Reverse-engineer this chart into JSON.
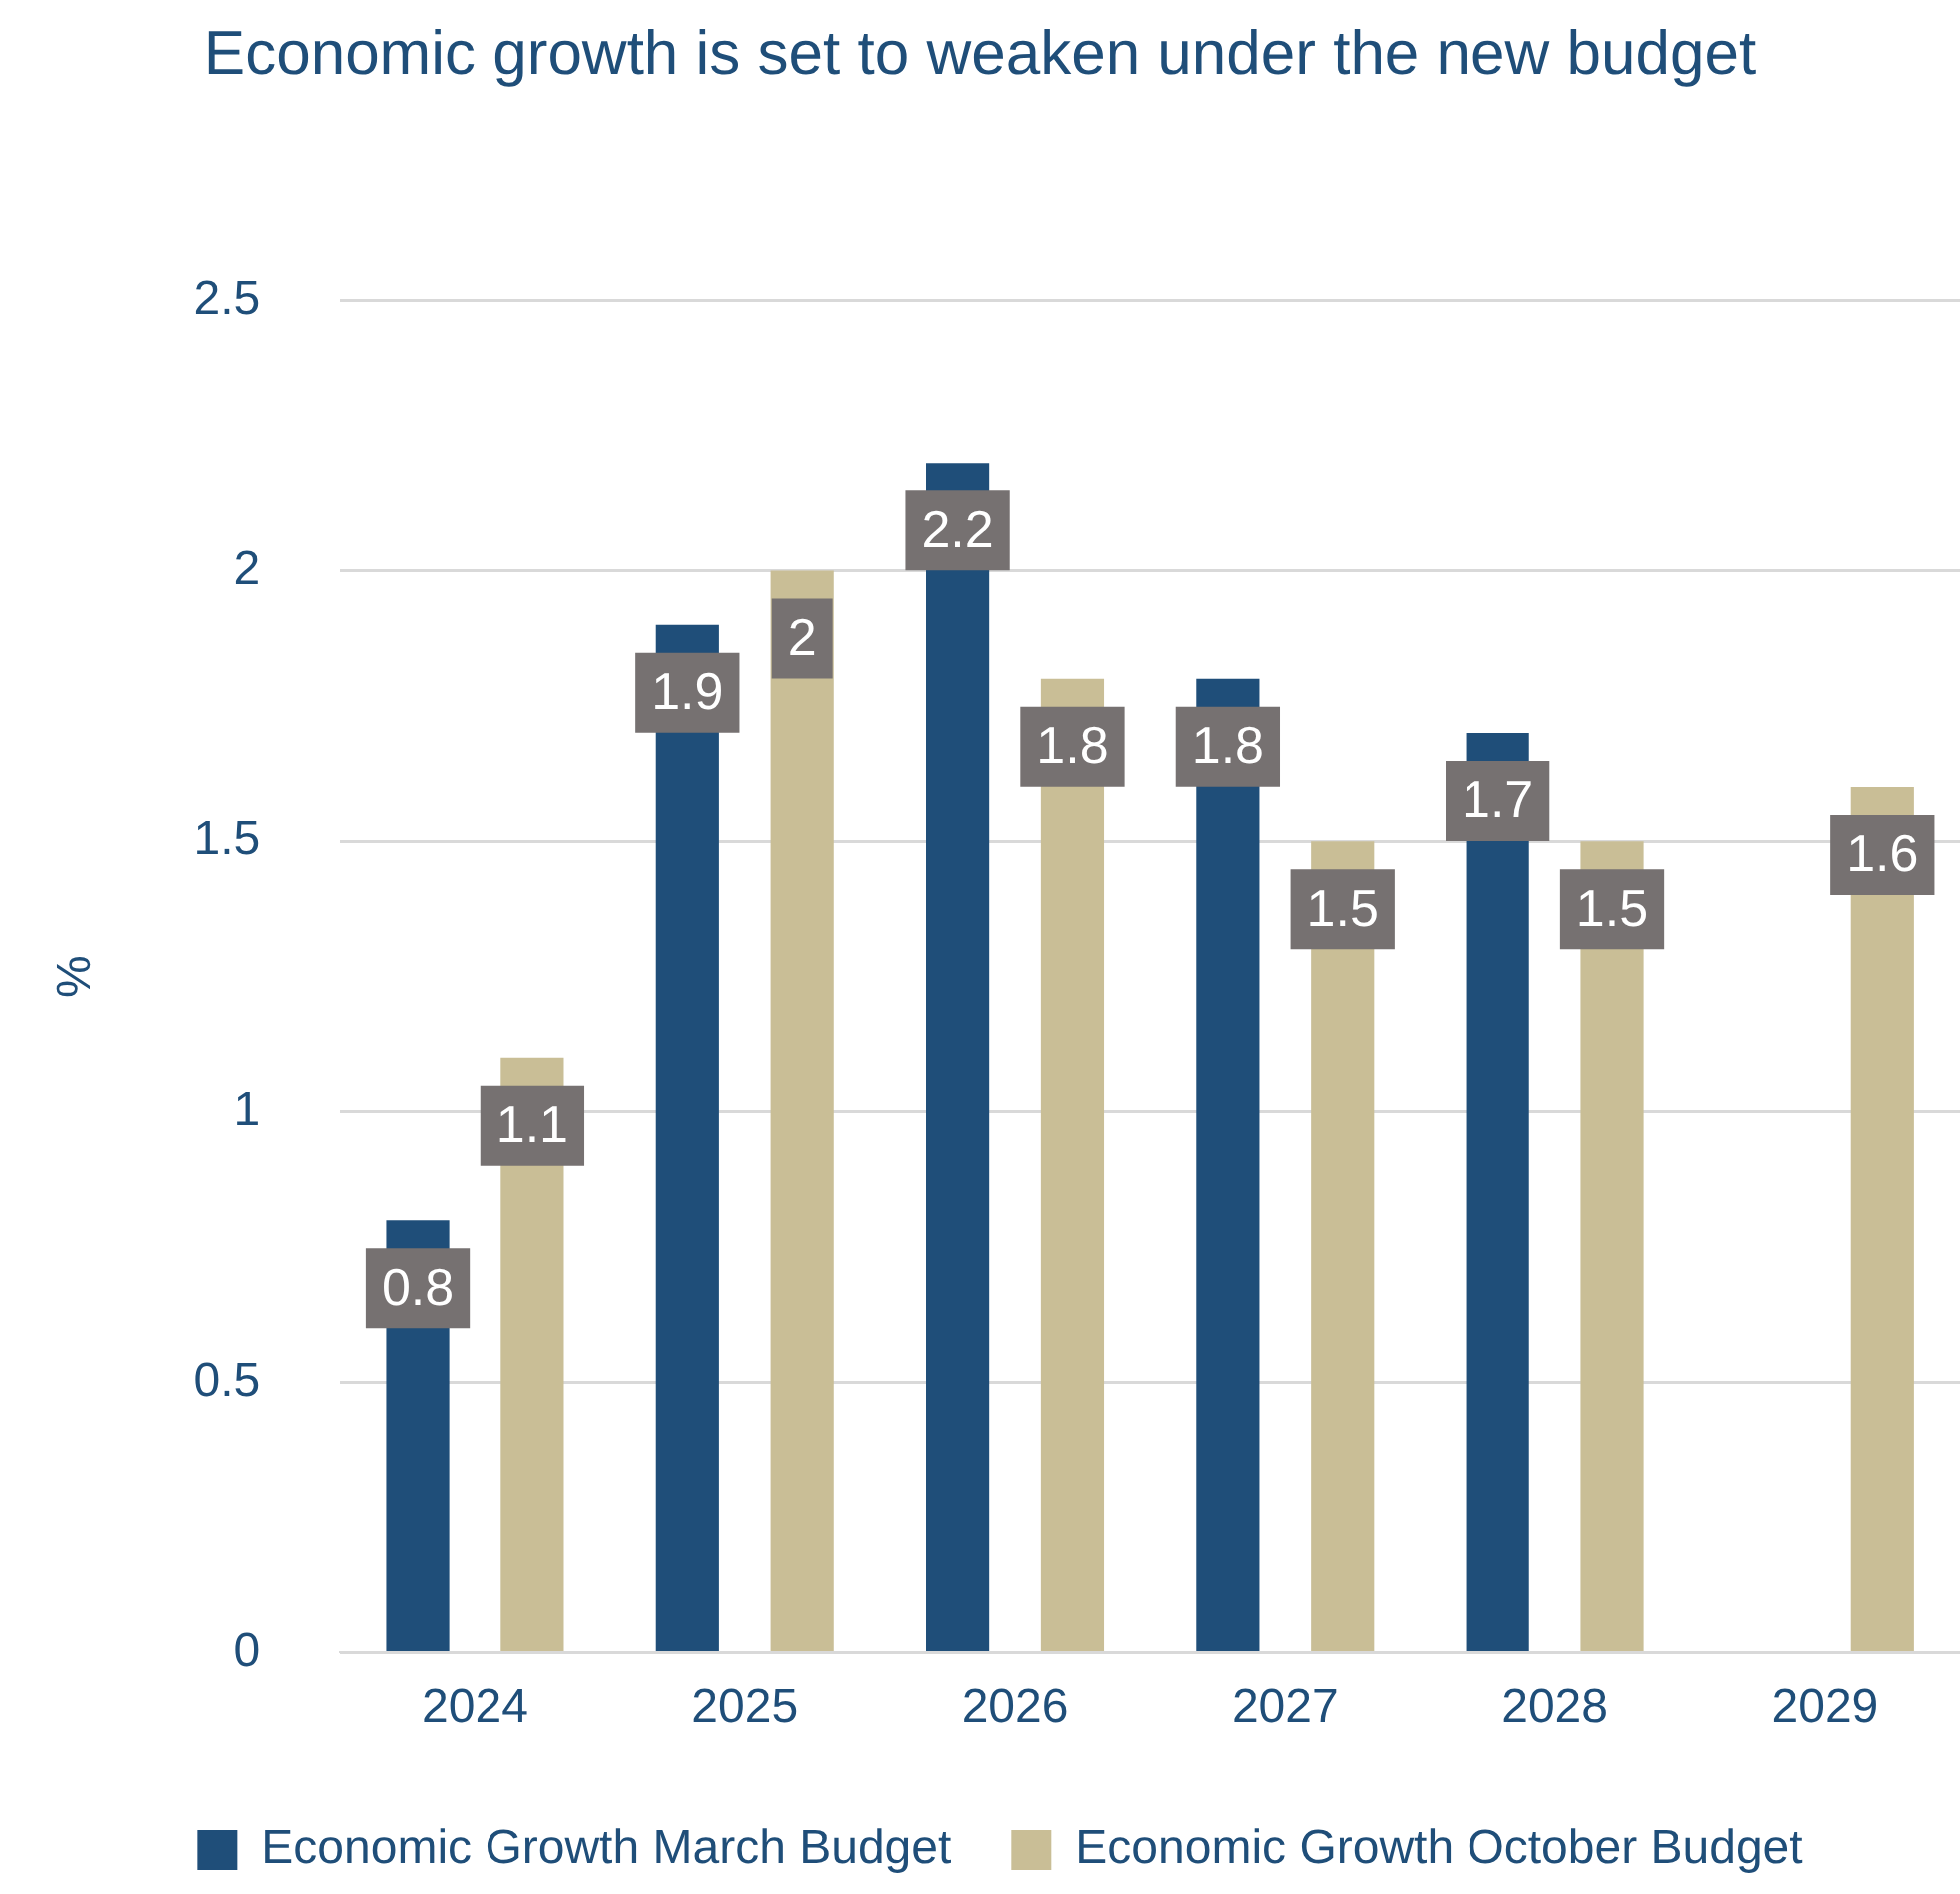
{
  "chart_data": {
    "type": "bar",
    "title": "Economic growth is set to weaken under the new budget",
    "ylabel": "%",
    "categories": [
      "2024",
      "2025",
      "2026",
      "2027",
      "2028",
      "2029"
    ],
    "series": [
      {
        "name": "Economic Growth March Budget",
        "color": "#1f4e79",
        "values": [
          0.8,
          1.9,
          2.2,
          1.8,
          1.7,
          null
        ]
      },
      {
        "name": "Economic Growth October Budget",
        "color": "#c9be96",
        "values": [
          1.1,
          2,
          1.8,
          1.5,
          1.5,
          1.6
        ]
      }
    ],
    "ylim": [
      0,
      2.5
    ],
    "yticks": [
      0,
      0.5,
      1,
      1.5,
      2,
      2.5
    ],
    "grid": "y",
    "legend": "bottom",
    "data_labels": true
  }
}
